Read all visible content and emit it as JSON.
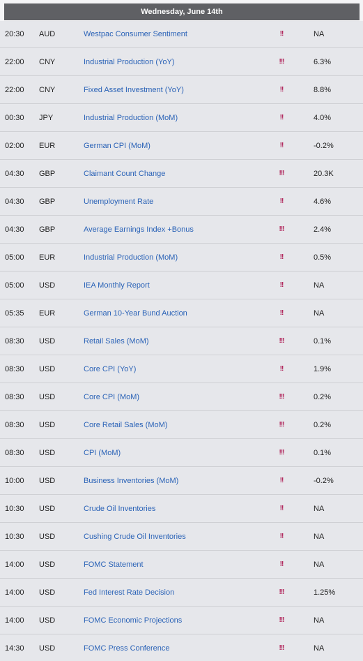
{
  "header": {
    "date": "Wednesday, June 14th"
  },
  "events": [
    {
      "time": "20:30",
      "currency": "AUD",
      "event": "Westpac Consumer Sentiment",
      "importance": "!!",
      "value": "NA"
    },
    {
      "time": "22:00",
      "currency": "CNY",
      "event": "Industrial Production (YoY)",
      "importance": "!!!",
      "value": "6.3%"
    },
    {
      "time": "22:00",
      "currency": "CNY",
      "event": "Fixed Asset Investment (YoY)",
      "importance": "!!",
      "value": "8.8%"
    },
    {
      "time": "00:30",
      "currency": "JPY",
      "event": "Industrial Production (MoM)",
      "importance": "!!",
      "value": "4.0%"
    },
    {
      "time": "02:00",
      "currency": "EUR",
      "event": "German CPI (MoM)",
      "importance": "!!",
      "value": "-0.2%"
    },
    {
      "time": "04:30",
      "currency": "GBP",
      "event": "Claimant Count Change",
      "importance": "!!!",
      "value": "20.3K"
    },
    {
      "time": "04:30",
      "currency": "GBP",
      "event": "Unemployment Rate",
      "importance": "!!",
      "value": "4.6%"
    },
    {
      "time": "04:30",
      "currency": "GBP",
      "event": "Average Earnings Index +Bonus",
      "importance": "!!!",
      "value": "2.4%"
    },
    {
      "time": "05:00",
      "currency": "EUR",
      "event": "Industrial Production (MoM)",
      "importance": "!!",
      "value": "0.5%"
    },
    {
      "time": "05:00",
      "currency": "USD",
      "event": "IEA Monthly Report",
      "importance": "!!",
      "value": "NA"
    },
    {
      "time": "05:35",
      "currency": "EUR",
      "event": "German 10-Year Bund Auction",
      "importance": "!!",
      "value": "NA"
    },
    {
      "time": "08:30",
      "currency": "USD",
      "event": "Retail Sales (MoM)",
      "importance": "!!!",
      "value": "0.1%"
    },
    {
      "time": "08:30",
      "currency": "USD",
      "event": "Core CPI (YoY)",
      "importance": "!!",
      "value": "1.9%"
    },
    {
      "time": "08:30",
      "currency": "USD",
      "event": "Core CPI (MoM)",
      "importance": "!!!",
      "value": "0.2%"
    },
    {
      "time": "08:30",
      "currency": "USD",
      "event": "Core Retail Sales (MoM)",
      "importance": "!!!",
      "value": "0.2%"
    },
    {
      "time": "08:30",
      "currency": "USD",
      "event": "CPI (MoM)",
      "importance": "!!!",
      "value": "0.1%"
    },
    {
      "time": "10:00",
      "currency": "USD",
      "event": "Business Inventories (MoM)",
      "importance": "!!",
      "value": "-0.2%"
    },
    {
      "time": "10:30",
      "currency": "USD",
      "event": "Crude Oil Inventories",
      "importance": "!!",
      "value": "NA"
    },
    {
      "time": "10:30",
      "currency": "USD",
      "event": "Cushing Crude Oil Inventories",
      "importance": "!!",
      "value": "NA"
    },
    {
      "time": "14:00",
      "currency": "USD",
      "event": "FOMC Statement",
      "importance": "!!",
      "value": "NA"
    },
    {
      "time": "14:00",
      "currency": "USD",
      "event": "Fed Interest Rate Decision",
      "importance": "!!!",
      "value": "1.25%"
    },
    {
      "time": "14:00",
      "currency": "USD",
      "event": "FOMC Economic Projections",
      "importance": "!!!",
      "value": "NA"
    },
    {
      "time": "14:30",
      "currency": "USD",
      "event": "FOMC Press Conference",
      "importance": "!!!",
      "value": "NA"
    }
  ]
}
